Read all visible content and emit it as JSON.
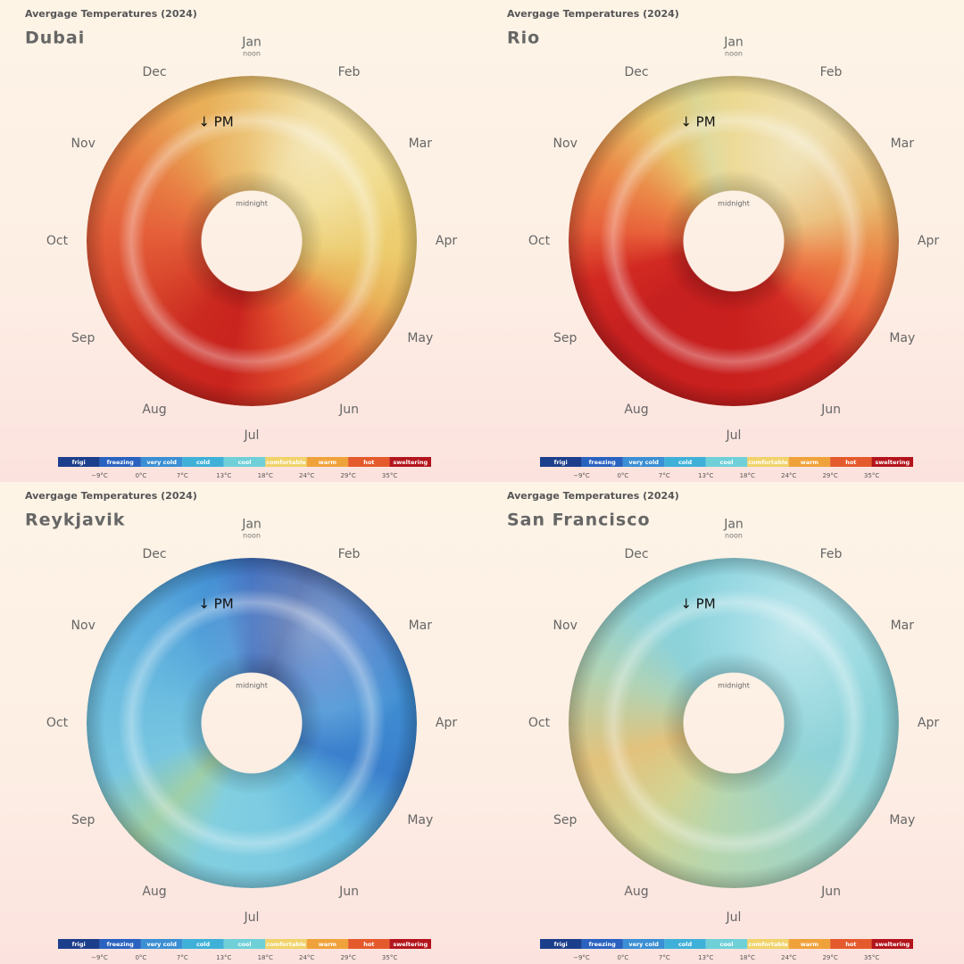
{
  "panels": [
    {
      "heading": "Avergage Temperatures (2024)",
      "city": "Dubai",
      "months": [
        "Jan",
        "Feb",
        "Mar",
        "Apr",
        "May",
        "Jun",
        "Jul",
        "Aug",
        "Sep",
        "Oct",
        "Nov",
        "Dec"
      ],
      "noon": "noon",
      "midnight": "midnight",
      "pm": "↓ PM",
      "legend": {
        "items": [
          {
            "label": "frigi",
            "color": "#1c3f8c"
          },
          {
            "label": "freezing",
            "color": "#2a62c0"
          },
          {
            "label": "very cold",
            "color": "#3b8fd4"
          },
          {
            "label": "cold",
            "color": "#3fb1d9"
          },
          {
            "label": "cool",
            "color": "#6fd0d8"
          },
          {
            "label": "comfortable",
            "color": "#f0d36a"
          },
          {
            "label": "warm",
            "color": "#f0a23a"
          },
          {
            "label": "hot",
            "color": "#e55a2c"
          },
          {
            "label": "sweltering",
            "color": "#b3141c"
          }
        ],
        "ticks": [
          "−9°C",
          "0°C",
          "7°C",
          "13°C",
          "18°C",
          "24°C",
          "29°C",
          "35°C"
        ]
      }
    },
    {
      "heading": "Avergage Temperatures (2024)",
      "city": "Rio",
      "months": [
        "Jan",
        "Feb",
        "Mar",
        "Apr",
        "May",
        "Jun",
        "Jul",
        "Aug",
        "Sep",
        "Oct",
        "Nov",
        "Dec"
      ],
      "noon": "noon",
      "midnight": "midnight",
      "pm": "↓ PM",
      "legend": {
        "items": [
          {
            "label": "frigi",
            "color": "#1c3f8c"
          },
          {
            "label": "freezing",
            "color": "#2a62c0"
          },
          {
            "label": "very cold",
            "color": "#3b8fd4"
          },
          {
            "label": "cold",
            "color": "#3fb1d9"
          },
          {
            "label": "cool",
            "color": "#6fd0d8"
          },
          {
            "label": "comfortable",
            "color": "#f0d36a"
          },
          {
            "label": "warm",
            "color": "#f0a23a"
          },
          {
            "label": "hot",
            "color": "#e55a2c"
          },
          {
            "label": "sweltering",
            "color": "#b3141c"
          }
        ],
        "ticks": [
          "−9°C",
          "0°C",
          "7°C",
          "13°C",
          "18°C",
          "24°C",
          "29°C",
          "35°C"
        ]
      }
    },
    {
      "heading": "Avergage Temperatures (2024)",
      "city": "Reykjavik",
      "months": [
        "Jan",
        "Feb",
        "Mar",
        "Apr",
        "May",
        "Jun",
        "Jul",
        "Aug",
        "Sep",
        "Oct",
        "Nov",
        "Dec"
      ],
      "noon": "noon",
      "midnight": "midnight",
      "pm": "↓ PM",
      "legend": {
        "items": [
          {
            "label": "frigi",
            "color": "#1c3f8c"
          },
          {
            "label": "freezing",
            "color": "#2a62c0"
          },
          {
            "label": "very cold",
            "color": "#3b8fd4"
          },
          {
            "label": "cold",
            "color": "#3fb1d9"
          },
          {
            "label": "cool",
            "color": "#6fd0d8"
          },
          {
            "label": "comfortable",
            "color": "#f0d36a"
          },
          {
            "label": "warm",
            "color": "#f0a23a"
          },
          {
            "label": "hot",
            "color": "#e55a2c"
          },
          {
            "label": "sweltering",
            "color": "#b3141c"
          }
        ],
        "ticks": [
          "−9°C",
          "0°C",
          "7°C",
          "13°C",
          "18°C",
          "24°C",
          "29°C",
          "35°C"
        ]
      }
    },
    {
      "heading": "Avergage Temperatures (2024)",
      "city": "San Francisco",
      "months": [
        "Jan",
        "Feb",
        "Mar",
        "Apr",
        "May",
        "Jun",
        "Jul",
        "Aug",
        "Sep",
        "Oct",
        "Nov",
        "Dec"
      ],
      "noon": "noon",
      "midnight": "midnight",
      "pm": "↓ PM",
      "legend": {
        "items": [
          {
            "label": "frigi",
            "color": "#1c3f8c"
          },
          {
            "label": "freezing",
            "color": "#2a62c0"
          },
          {
            "label": "very cold",
            "color": "#3b8fd4"
          },
          {
            "label": "cold",
            "color": "#3fb1d9"
          },
          {
            "label": "cool",
            "color": "#6fd0d8"
          },
          {
            "label": "comfortable",
            "color": "#f0d36a"
          },
          {
            "label": "warm",
            "color": "#f0a23a"
          },
          {
            "label": "hot",
            "color": "#e55a2c"
          },
          {
            "label": "sweltering",
            "color": "#b3141c"
          }
        ],
        "ticks": [
          "−9°C",
          "0°C",
          "7°C",
          "13°C",
          "18°C",
          "24°C",
          "29°C",
          "35°C"
        ]
      }
    }
  ]
}
